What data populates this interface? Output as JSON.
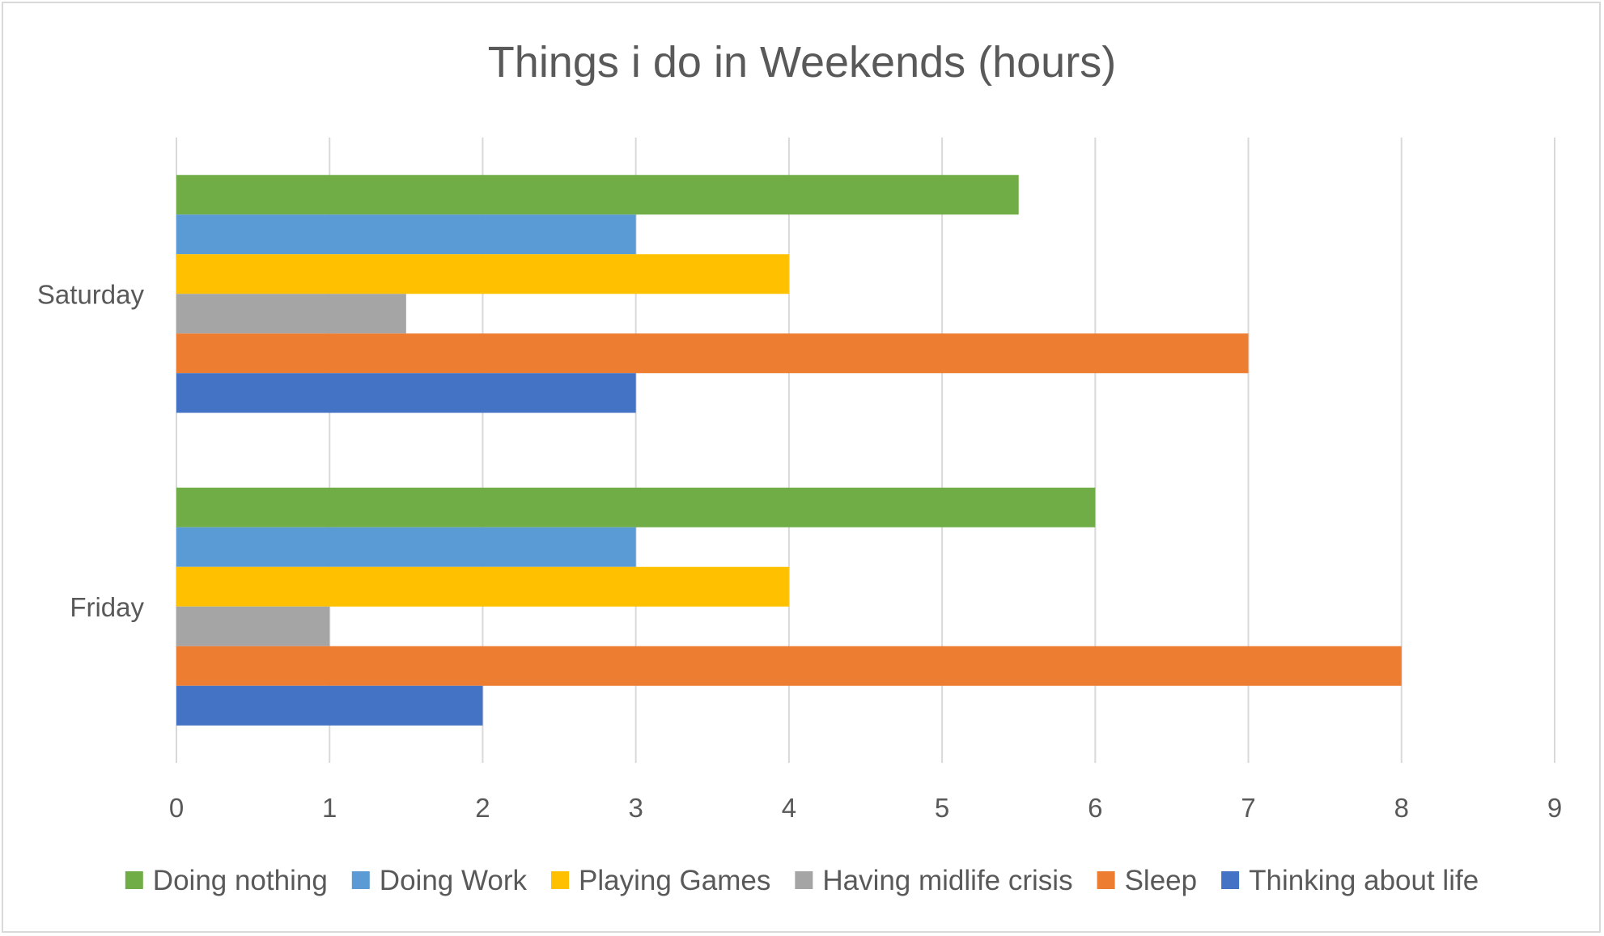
{
  "chart_data": {
    "type": "bar",
    "orientation": "horizontal",
    "title": "Things i do in Weekends (hours)",
    "xlabel": "",
    "ylabel": "",
    "categories": [
      "Friday",
      "Saturday"
    ],
    "series": [
      {
        "name": "Doing nothing",
        "values": [
          6,
          5.5
        ],
        "color": "#70ad47"
      },
      {
        "name": "Doing Work",
        "values": [
          3,
          3
        ],
        "color": "#5b9bd5"
      },
      {
        "name": "Playing Games",
        "values": [
          4,
          4
        ],
        "color": "#ffc000"
      },
      {
        "name": "Having midlife crisis",
        "values": [
          1,
          1.5
        ],
        "color": "#a5a5a5"
      },
      {
        "name": "Sleep",
        "values": [
          8,
          7
        ],
        "color": "#ed7d31"
      },
      {
        "name": "Thinking about life",
        "values": [
          2,
          3
        ],
        "color": "#4472c4"
      }
    ],
    "xlim": [
      0,
      9
    ],
    "xticks": [
      "0",
      "1",
      "2",
      "3",
      "4",
      "5",
      "6",
      "7",
      "8",
      "9"
    ],
    "grid": "vertical",
    "legend": "bottom"
  }
}
